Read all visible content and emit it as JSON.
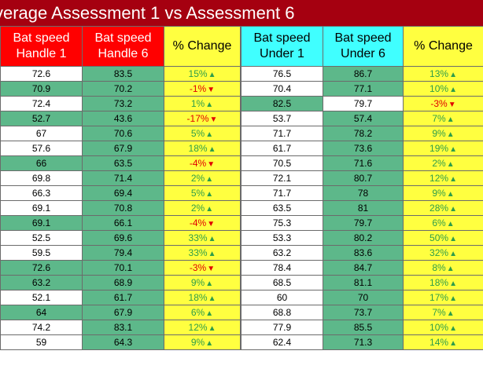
{
  "title": "verage Assessment 1 vs Assessment 6",
  "headers": {
    "h1": [
      "Bat speed",
      "Handle 1"
    ],
    "h2": [
      "Bat speed",
      "Handle 6"
    ],
    "h3": [
      "% Change"
    ],
    "h4": [
      "Bat speed",
      "Under 1"
    ],
    "h5": [
      "Bat speed",
      "Under 6"
    ],
    "h6": [
      "% Change"
    ]
  },
  "colors": {
    "title": "#a50010",
    "red": "#ff0000",
    "yellow": "#ffff40",
    "cyan": "#40ffff",
    "green": "#5db88a",
    "up": "#2e9d4a",
    "down": "#e00000"
  },
  "icons": {
    "up": "up-triangle-icon",
    "down": "down-triangle-icon"
  },
  "rows": [
    {
      "h1": "72.6",
      "h6": "83.5",
      "hc": "15%",
      "hd": "up",
      "u1": "76.5",
      "u6": "86.7",
      "uc": "13%",
      "ud": "up"
    },
    {
      "h1": "70.9",
      "h6": "70.2",
      "hc": "-1%",
      "hd": "down",
      "u1": "70.4",
      "u6": "77.1",
      "uc": "10%",
      "ud": "up"
    },
    {
      "h1": "72.4",
      "h6": "73.2",
      "hc": "1%",
      "hd": "up",
      "u1": "82.5",
      "u6": "79.7",
      "uc": "-3%",
      "ud": "down"
    },
    {
      "h1": "52.7",
      "h6": "43.6",
      "hc": "-17%",
      "hd": "down",
      "u1": "53.7",
      "u6": "57.4",
      "uc": "7%",
      "ud": "up"
    },
    {
      "h1": "67",
      "h6": "70.6",
      "hc": "5%",
      "hd": "up",
      "u1": "71.7",
      "u6": "78.2",
      "uc": "9%",
      "ud": "up"
    },
    {
      "h1": "57.6",
      "h6": "67.9",
      "hc": "18%",
      "hd": "up",
      "u1": "61.7",
      "u6": "73.6",
      "uc": "19%",
      "ud": "up"
    },
    {
      "h1": "66",
      "h6": "63.5",
      "hc": "-4%",
      "hd": "down",
      "u1": "70.5",
      "u6": "71.6",
      "uc": "2%",
      "ud": "up"
    },
    {
      "h1": "69.8",
      "h6": "71.4",
      "hc": "2%",
      "hd": "up",
      "u1": "72.1",
      "u6": "80.7",
      "uc": "12%",
      "ud": "up"
    },
    {
      "h1": "66.3",
      "h6": "69.4",
      "hc": "5%",
      "hd": "up",
      "u1": "71.7",
      "u6": "78",
      "uc": "9%",
      "ud": "up"
    },
    {
      "h1": "69.1",
      "h6": "70.8",
      "hc": "2%",
      "hd": "up",
      "u1": "63.5",
      "u6": "81",
      "uc": "28%",
      "ud": "up"
    },
    {
      "h1": "69.1",
      "h6": "66.1",
      "hc": "-4%",
      "hd": "down",
      "u1": "75.3",
      "u6": "79.7",
      "uc": "6%",
      "ud": "up"
    },
    {
      "h1": "52.5",
      "h6": "69.6",
      "hc": "33%",
      "hd": "up",
      "u1": "53.3",
      "u6": "80.2",
      "uc": "50%",
      "ud": "up"
    },
    {
      "h1": "59.5",
      "h6": "79.4",
      "hc": "33%",
      "hd": "up",
      "u1": "63.2",
      "u6": "83.6",
      "uc": "32%",
      "ud": "up"
    },
    {
      "h1": "72.6",
      "h6": "70.1",
      "hc": "-3%",
      "hd": "down",
      "u1": "78.4",
      "u6": "84.7",
      "uc": "8%",
      "ud": "up"
    },
    {
      "h1": "63.2",
      "h6": "68.9",
      "hc": "9%",
      "hd": "up",
      "u1": "68.5",
      "u6": "81.1",
      "uc": "18%",
      "ud": "up"
    },
    {
      "h1": "52.1",
      "h6": "61.7",
      "hc": "18%",
      "hd": "up",
      "u1": "60",
      "u6": "70",
      "uc": "17%",
      "ud": "up"
    },
    {
      "h1": "64",
      "h6": "67.9",
      "hc": "6%",
      "hd": "up",
      "u1": "68.8",
      "u6": "73.7",
      "uc": "7%",
      "ud": "up"
    },
    {
      "h1": "74.2",
      "h6": "83.1",
      "hc": "12%",
      "hd": "up",
      "u1": "77.9",
      "u6": "85.5",
      "uc": "10%",
      "ud": "up"
    },
    {
      "h1": "59",
      "h6": "64.3",
      "hc": "9%",
      "hd": "up",
      "u1": "62.4",
      "u6": "71.3",
      "uc": "14%",
      "ud": "up"
    }
  ]
}
